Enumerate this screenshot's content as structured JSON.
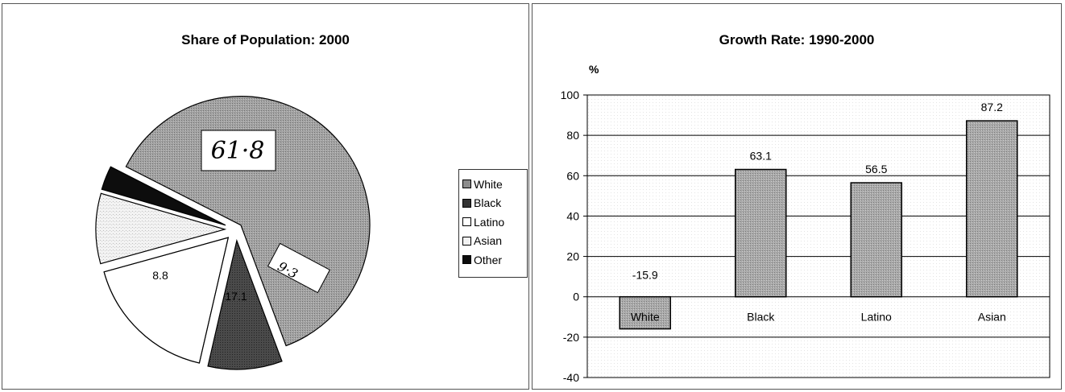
{
  "chart_data": [
    {
      "type": "pie",
      "title": "Share of Population:  2000",
      "categories": [
        "White",
        "Black",
        "Latino",
        "Asian",
        "Other"
      ],
      "values": [
        61.8,
        9.3,
        17.1,
        8.8,
        3.0
      ],
      "value_labels": [
        "61·8",
        "9·3",
        "17.1",
        "8.8",
        ""
      ],
      "colors": [
        "#9a9a9a",
        "#444444",
        "#ffffff",
        "#ececec",
        "#0d0d0d"
      ],
      "legend_position": "right"
    },
    {
      "type": "bar",
      "title": "Growth Rate:  1990-2000",
      "ylabel": "%",
      "categories": [
        "White",
        "Black",
        "Latino",
        "Asian"
      ],
      "values": [
        -15.9,
        63.1,
        56.5,
        87.2
      ],
      "value_labels": [
        "-15.9",
        "63.1",
        "56.5",
        "87.2"
      ],
      "ylim": [
        -40,
        100
      ],
      "yticks": [
        -40,
        -20,
        0,
        20,
        40,
        60,
        80,
        100
      ],
      "grid": true,
      "bar_color": "#a9a9a9"
    }
  ]
}
